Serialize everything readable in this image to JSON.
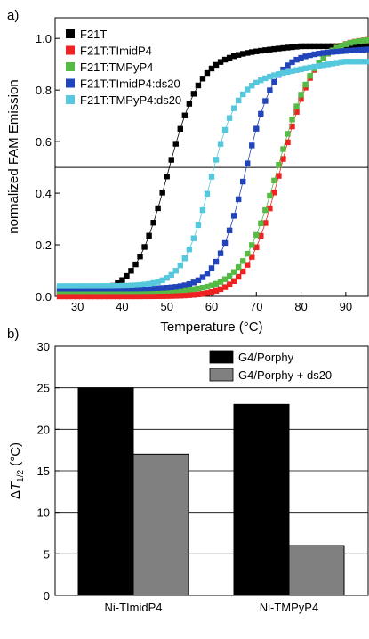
{
  "panel_labels": {
    "a": "a)",
    "b": "b)"
  },
  "chart_data": [
    {
      "type": "scatter",
      "xlabel": "Temperature (°C)",
      "ylabel": "normalized FAM Emission",
      "xlim": [
        25,
        95
      ],
      "ylim": [
        0,
        1.08
      ],
      "x_ticks": [
        30,
        40,
        50,
        60,
        70,
        80,
        90
      ],
      "y_ticks": [
        "0.0",
        "0.2",
        "0.4",
        "0.6",
        "0.8",
        "1.0"
      ],
      "reference_line_y": 0.5,
      "legend_position": "top-left",
      "series": [
        {
          "name": "F21T",
          "color": "#000000",
          "tm": 50,
          "width": 3.6,
          "low": 0.01,
          "high": 0.92,
          "tail": 0.1
        },
        {
          "name": "F21T:TImidP4",
          "color": "#ee2222",
          "tm": 75.5,
          "width": 3.8,
          "low": 0.0,
          "high": 1.0,
          "tail": 0
        },
        {
          "name": "F21T:TMPyP4",
          "color": "#55bb44",
          "tm": 75,
          "width": 4.0,
          "low": 0.02,
          "high": 1.0,
          "tail": 0
        },
        {
          "name": "F21T:TImidP4:ds20",
          "color": "#2244bb",
          "tm": 67.5,
          "width": 3.2,
          "low": 0.03,
          "high": 0.93,
          "tail": 0.06
        },
        {
          "name": "F21T:TMPyP4:ds20",
          "color": "#55c8dd",
          "tm": 59.5,
          "width": 3.0,
          "low": 0.04,
          "high": 0.82,
          "tail": 0.18
        }
      ]
    },
    {
      "type": "bar",
      "ylabel": "ΔT1/2 (°C)",
      "ylabel_parts": {
        "delta": "Δ",
        "t": "T",
        "sub": "1/2",
        "unit": " (°C)"
      },
      "ylim": [
        0,
        30
      ],
      "y_ticks": [
        "0",
        "5",
        "10",
        "15",
        "20",
        "25",
        "30"
      ],
      "categories": [
        "Ni-TImidP4",
        "Ni-TMPyP4"
      ],
      "legend_position": "top-right",
      "series": [
        {
          "name": "G4/Porphy",
          "color": "#000000",
          "values": [
            25,
            23
          ]
        },
        {
          "name": "G4/Porphy + ds20",
          "color": "#808080",
          "values": [
            17,
            6
          ]
        }
      ]
    }
  ]
}
